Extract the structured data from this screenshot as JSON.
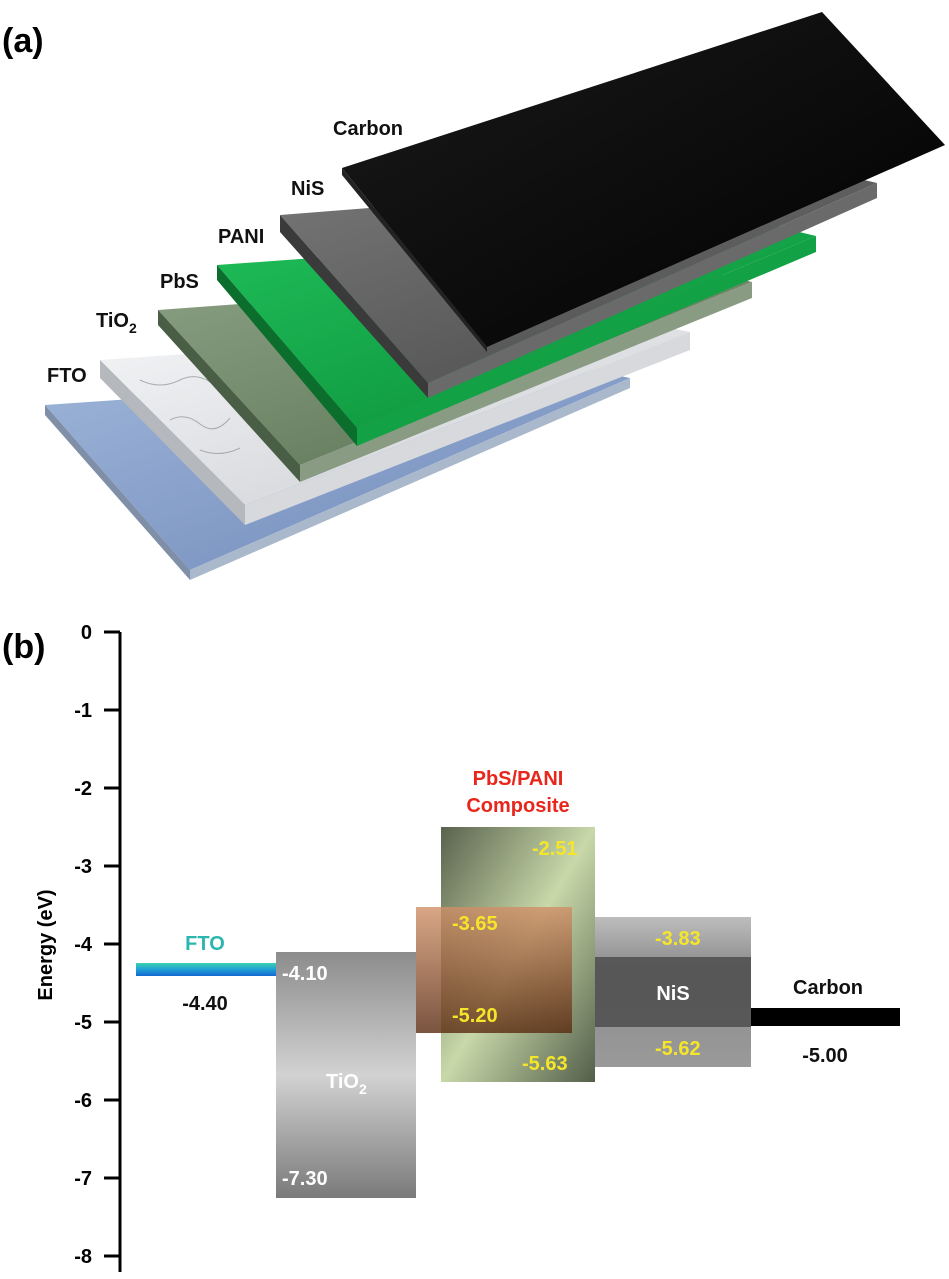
{
  "panel_a": {
    "label": "(a)",
    "layers": [
      {
        "name": "FTO",
        "color": "#8fa8cf"
      },
      {
        "name": "TiO",
        "subscript": "2",
        "color": "#e8eaec"
      },
      {
        "name": "PbS",
        "color": "#6e8466"
      },
      {
        "name": "PANI",
        "color": "#16a34a"
      },
      {
        "name": "NiS",
        "color": "#5e5e5e"
      },
      {
        "name": "Carbon",
        "color": "#0a0a0a"
      }
    ]
  },
  "panel_b": {
    "label": "(b)",
    "y_axis_label": "Energy (eV)",
    "y_ticks": [
      "0",
      "-1",
      "-2",
      "-3",
      "-4",
      "-5",
      "-6",
      "-7",
      "-8"
    ],
    "fto": {
      "name": "FTO",
      "level": "-4.40",
      "color": "#2bb7b0"
    },
    "tio2": {
      "name": "TiO",
      "subscript": "2",
      "cb": "-4.10",
      "vb": "-7.30"
    },
    "composite": {
      "title_line1": "PbS/PANI",
      "title_line2": "Composite",
      "title_color": "#e8261c",
      "pani_lumo": "-2.51",
      "pbs_cb": "-3.65",
      "pbs_vb": "-5.20",
      "pani_homo": "-5.63",
      "value_color": "#f5e62a"
    },
    "nis": {
      "name": "NiS",
      "cb": "-3.83",
      "vb": "-5.62"
    },
    "carbon": {
      "name": "Carbon",
      "level": "-5.00"
    }
  }
}
